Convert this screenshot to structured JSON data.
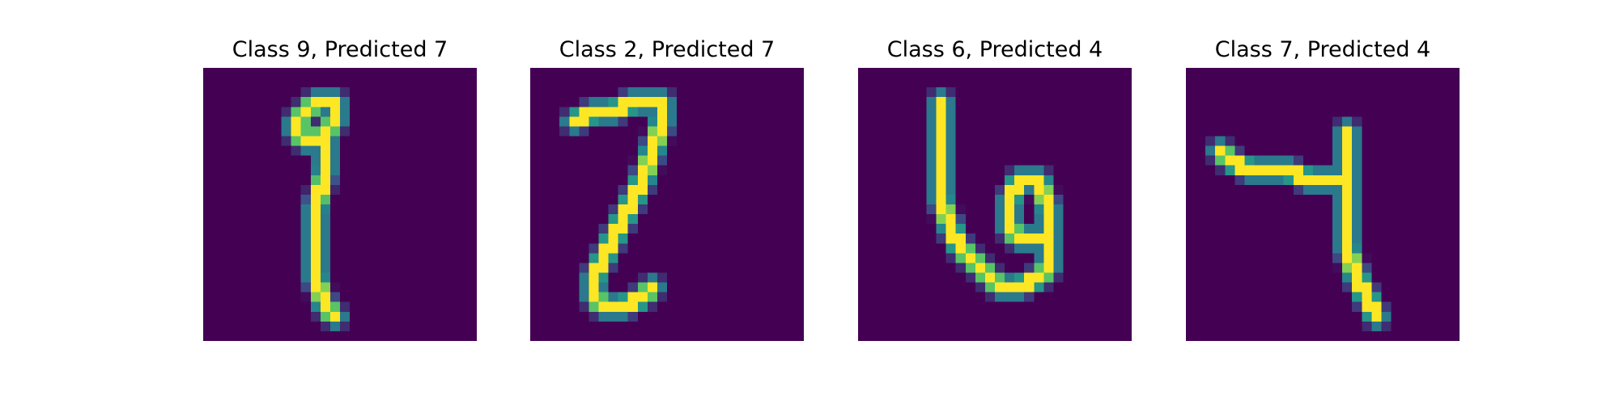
{
  "colors": {
    "background": "#440154",
    "colormap": "viridis"
  },
  "chart_data": [
    {
      "type": "heatmap",
      "title": "Class 9, Predicted 7",
      "grid": false,
      "rows": 28,
      "cols": 28,
      "strokes": [
        [
          [
            10,
            4
          ],
          [
            11,
            3
          ],
          [
            12,
            3
          ],
          [
            13,
            3
          ],
          [
            13,
            4
          ],
          [
            13,
            5
          ],
          [
            12,
            6
          ],
          [
            11,
            7
          ],
          [
            10,
            7
          ],
          [
            9,
            6
          ],
          [
            9,
            5
          ],
          [
            10,
            4
          ]
        ],
        [
          [
            12,
            6
          ],
          [
            12,
            10
          ],
          [
            11,
            14
          ],
          [
            11,
            18
          ],
          [
            11,
            21
          ],
          [
            12,
            24
          ],
          [
            13,
            25
          ]
        ]
      ]
    },
    {
      "type": "heatmap",
      "title": "Class 2, Predicted 7",
      "grid": false,
      "rows": 28,
      "cols": 28,
      "strokes": [
        [
          [
            4,
            5
          ],
          [
            6,
            4
          ],
          [
            8,
            4
          ],
          [
            10,
            3
          ],
          [
            12,
            3
          ],
          [
            13,
            3
          ],
          [
            13,
            5
          ],
          [
            12,
            8
          ],
          [
            11,
            11
          ],
          [
            10,
            13
          ],
          [
            9,
            15
          ],
          [
            8,
            17
          ],
          [
            7,
            19
          ],
          [
            6,
            21
          ],
          [
            6,
            23
          ],
          [
            7,
            24
          ],
          [
            9,
            24
          ],
          [
            11,
            23
          ],
          [
            12,
            22
          ]
        ]
      ]
    },
    {
      "type": "heatmap",
      "title": "Class 6, Predicted 4",
      "grid": false,
      "rows": 28,
      "cols": 28,
      "strokes": [
        [
          [
            8,
            3
          ],
          [
            8,
            6
          ],
          [
            8,
            10
          ],
          [
            8,
            13
          ],
          [
            9,
            16
          ],
          [
            10,
            18
          ],
          [
            11,
            19
          ],
          [
            12,
            20
          ],
          [
            13,
            21
          ],
          [
            14,
            22
          ],
          [
            16,
            22
          ],
          [
            18,
            21
          ],
          [
            19,
            20
          ]
        ],
        [
          [
            19,
            20
          ],
          [
            19,
            14
          ],
          [
            18,
            11
          ],
          [
            16,
            11
          ],
          [
            15,
            13
          ],
          [
            15,
            16
          ],
          [
            16,
            17
          ],
          [
            18,
            17
          ]
        ]
      ]
    },
    {
      "type": "heatmap",
      "title": "Class 7, Predicted 4",
      "grid": false,
      "rows": 28,
      "cols": 28,
      "strokes": [
        [
          [
            3,
            8
          ],
          [
            4,
            9
          ],
          [
            6,
            10
          ],
          [
            8,
            10
          ],
          [
            10,
            10
          ],
          [
            12,
            11
          ],
          [
            14,
            11
          ],
          [
            16,
            11
          ]
        ],
        [
          [
            16,
            6
          ],
          [
            16,
            9
          ],
          [
            16,
            11
          ],
          [
            16,
            14
          ],
          [
            16,
            18
          ],
          [
            17,
            21
          ],
          [
            18,
            23
          ],
          [
            19,
            25
          ]
        ]
      ]
    }
  ]
}
